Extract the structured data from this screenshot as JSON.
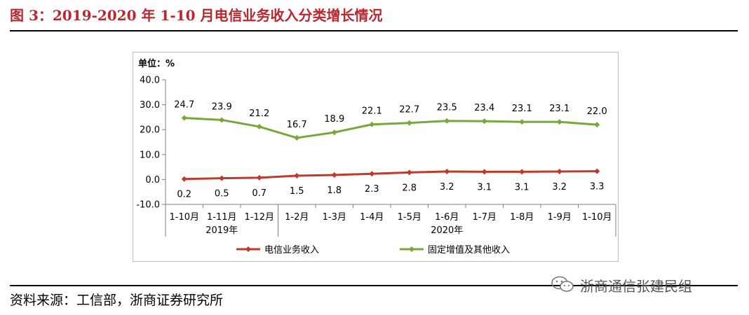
{
  "title": "图 3：2019-2020 年 1-10 月电信业务收入分类增长情况",
  "source": "资料来源：工信部，浙商证券研究所",
  "watermark": "浙商通信张建民组",
  "colors": {
    "title": "#b8282e",
    "series_telecom": "#c0392b",
    "series_fixed": "#76a83a",
    "axis": "#808080",
    "text": "#000000"
  },
  "chart_data": {
    "type": "line",
    "unit_label": "单位：%",
    "categories": [
      "1-10月",
      "1-11月",
      "1-12月",
      "1-2月",
      "1-3月",
      "1-4月",
      "1-5月",
      "1-6月",
      "1-7月",
      "1-8月",
      "1-9月",
      "1-10月"
    ],
    "year_groups": [
      {
        "label": "2019年",
        "from": 0,
        "to": 2
      },
      {
        "label": "2020年",
        "from": 3,
        "to": 11
      }
    ],
    "ylim": [
      -10,
      40
    ],
    "yticks": [
      -10,
      0,
      10,
      20,
      30,
      40
    ],
    "ytick_labels": [
      "-10.0",
      "0.0",
      "10.0",
      "20.0",
      "30.0",
      "40.0"
    ],
    "grid": false,
    "legend_position": "bottom",
    "series": [
      {
        "name": "电信业务收入",
        "color": "#c0392b",
        "marker": "diamond",
        "label_position": "below",
        "values": [
          0.2,
          0.5,
          0.7,
          1.5,
          1.8,
          2.3,
          2.8,
          3.2,
          3.1,
          3.1,
          3.2,
          3.3
        ],
        "labels": [
          "0.2",
          "0.5",
          "0.7",
          "1.5",
          "1.8",
          "2.3",
          "2.8",
          "3.2",
          "3.1",
          "3.1",
          "3.2",
          "3.3"
        ]
      },
      {
        "name": "固定增值及其他收入",
        "color": "#76a83a",
        "marker": "diamond",
        "label_position": "above",
        "values": [
          24.7,
          23.9,
          21.2,
          16.7,
          18.9,
          22.1,
          22.7,
          23.5,
          23.4,
          23.1,
          23.1,
          22.0
        ],
        "labels": [
          "24.7",
          "23.9",
          "21.2",
          "16.7",
          "18.9",
          "22.1",
          "22.7",
          "23.5",
          "23.4",
          "23.1",
          "23.1",
          "22.0"
        ]
      }
    ]
  }
}
